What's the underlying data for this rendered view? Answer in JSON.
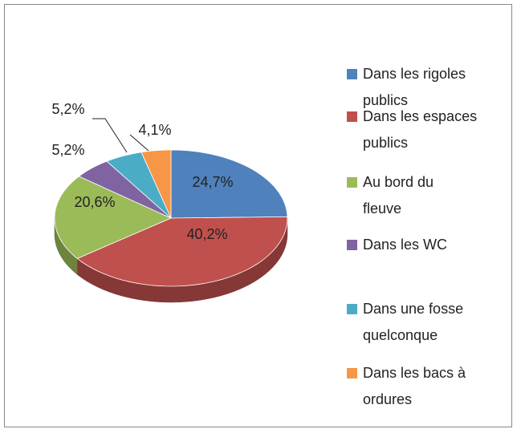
{
  "chart_data": {
    "type": "pie",
    "categories": [
      "Dans les rigoles publics",
      "Dans les espaces publics",
      "Au bord du fleuve",
      "Dans les WC",
      "Dans une fosse quelconque",
      "Dans les bacs à ordures"
    ],
    "values": [
      24.7,
      40.2,
      20.6,
      5.2,
      5.2,
      4.1
    ],
    "value_labels": [
      "24,7%",
      "40,2%",
      "20,6%",
      "5,2%",
      "5,2%",
      "4,1%"
    ],
    "colors": [
      "#4f81bd",
      "#c0504d",
      "#9bbb59",
      "#8064a2",
      "#4bacc6",
      "#f79646"
    ],
    "legend": "right"
  }
}
